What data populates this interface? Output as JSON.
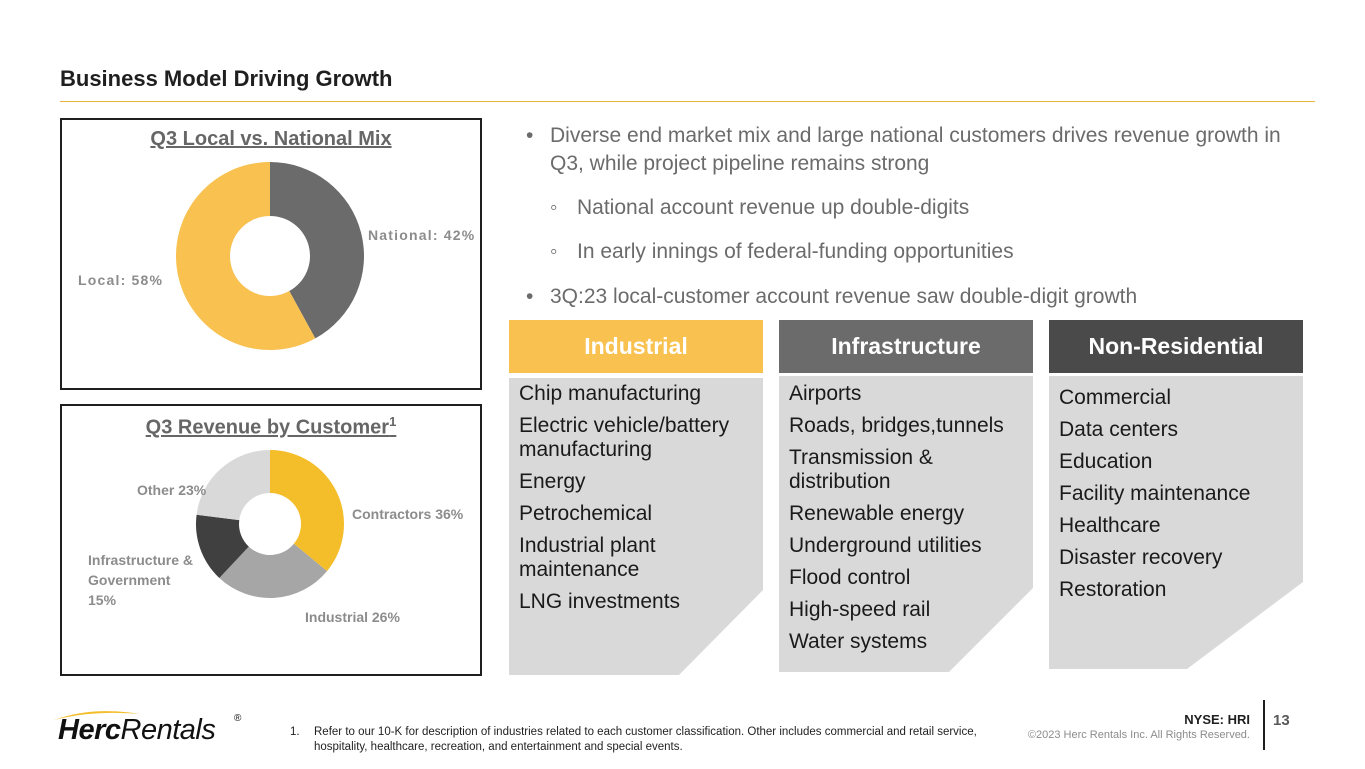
{
  "slide": {
    "title": "Business Model Driving Growth",
    "page_number": "13",
    "ticker": "NYSE: HRI",
    "copyright": "©2023 Herc Rentals Inc.  All Rights Reserved."
  },
  "logo": {
    "bold": "Herc",
    "light": "Rentals",
    "reg": "®"
  },
  "footnote": {
    "number": "1.",
    "text": "Refer to our 10-K for description of industries related to each customer classification.  Other includes commercial and retail service, hospitality, healthcare, recreation, and entertainment and special events."
  },
  "bullets": {
    "b1": "Diverse end market mix and large national customers drives revenue growth in Q3, while project pipeline remains strong",
    "s1": "National account revenue up double-digits",
    "s2": "In early innings of federal-funding opportunities",
    "b2": "3Q:23 local-customer account revenue saw double-digit growth"
  },
  "columns": [
    {
      "header": "Industrial",
      "items": [
        "Chip manufacturing",
        "Electric vehicle/battery manufacturing",
        "Energy",
        "Petrochemical",
        "Industrial plant maintenance",
        "LNG investments"
      ]
    },
    {
      "header": "Infrastructure",
      "items": [
        "Airports",
        "Roads, bridges,tunnels",
        "Transmission & distribution",
        "Renewable energy",
        "Underground utilities",
        "Flood control",
        "High-speed rail",
        "Water systems"
      ]
    },
    {
      "header": "Non-Residential",
      "items": [
        "Commercial",
        "Data centers",
        "Education",
        "Facility maintenance",
        "Healthcare",
        "Disaster recovery",
        "Restoration"
      ]
    }
  ],
  "colors": {
    "gold": "#f8c150",
    "dark_gray": "#6b6b6b",
    "darker_gray": "#4a4a4a",
    "panel_gray": "#d9d9d9",
    "contractors": "#f4bd2a",
    "industrial": "#a6a6a6",
    "infrastructure": "#404040",
    "other": "#d9d9d9"
  },
  "chart_data": [
    {
      "type": "pie",
      "title": "Q3 Local vs. National Mix",
      "donut": true,
      "categories": [
        "National",
        "Local"
      ],
      "values": [
        42,
        58
      ],
      "labels": [
        "National: 42%",
        "Local: 58%"
      ],
      "colors": [
        "#6b6b6b",
        "#f8c150"
      ]
    },
    {
      "type": "pie",
      "title": "Q3 Revenue by Customer",
      "title_sup": "1",
      "donut": true,
      "categories": [
        "Contractors",
        "Industrial",
        "Infrastructure & Government",
        "Other"
      ],
      "values": [
        36,
        26,
        15,
        23
      ],
      "labels": [
        "Contractors 36%",
        "Industrial 26%",
        "Infrastructure & Government 15%",
        "Other 23%"
      ],
      "colors": [
        "#f4bd2a",
        "#a6a6a6",
        "#404040",
        "#d9d9d9"
      ]
    }
  ]
}
